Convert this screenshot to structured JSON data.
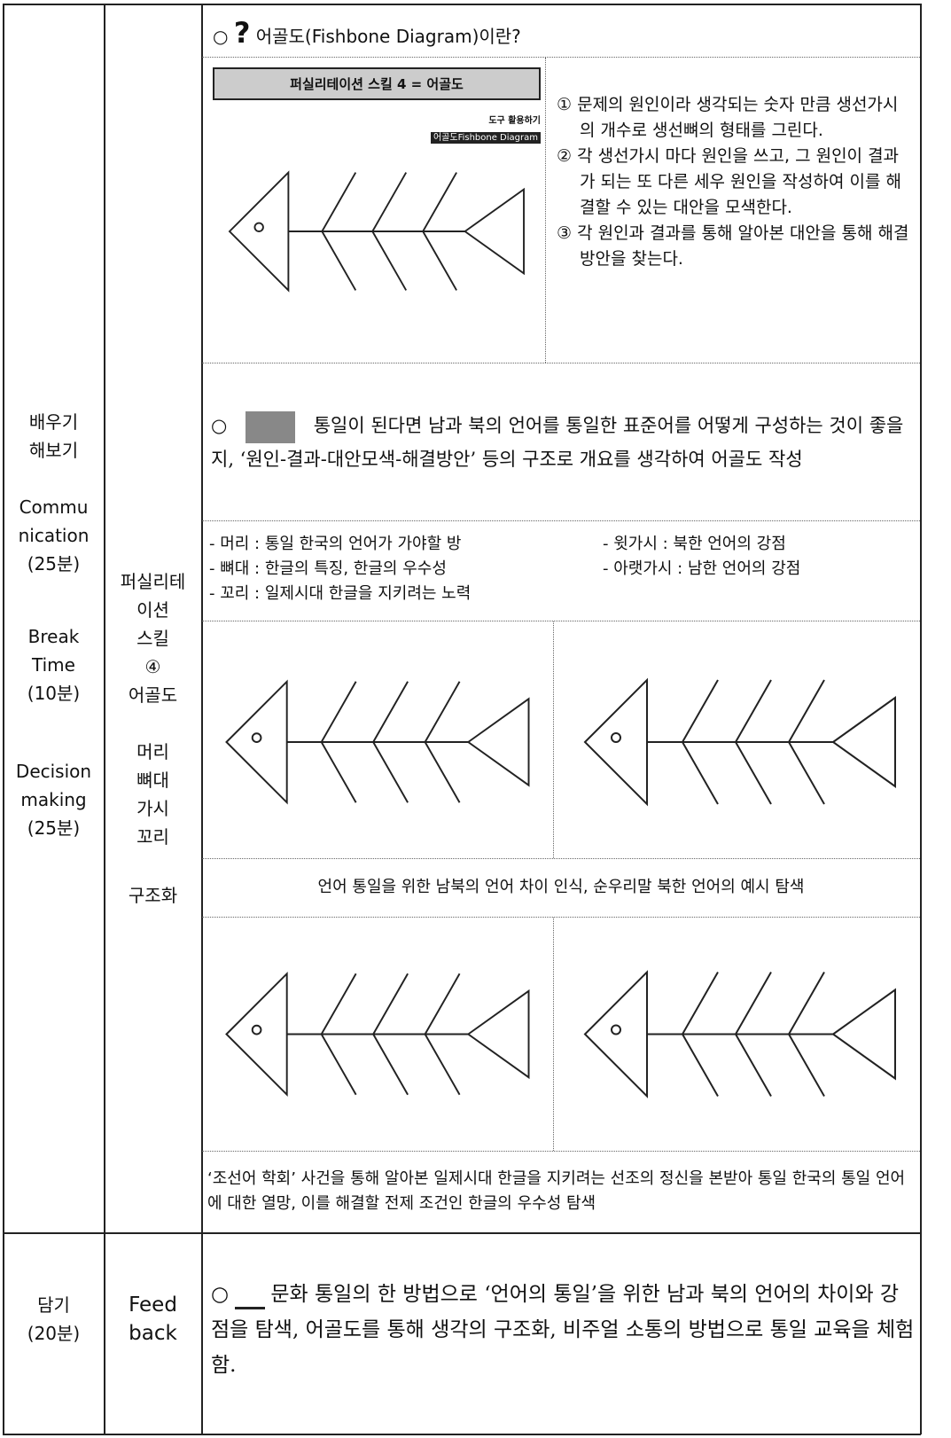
{
  "stages": [
    [
      "배우기",
      "해보기"
    ],
    [
      "Commu",
      "nication",
      "(25분)"
    ],
    [
      "Break",
      "Time",
      "(10분)"
    ],
    [
      "Decision",
      "making",
      "(25분)"
    ]
  ],
  "methods": [
    [
      "퍼실리테",
      "이션",
      "스킬",
      "④",
      "어골도"
    ],
    [
      "머리",
      "뼈대",
      "가시",
      "꼬리"
    ],
    [
      "구조화"
    ]
  ],
  "content": {
    "heading": "어골도(Fishbone Diagram)이란?",
    "inset": {
      "title": "퍼실리테이션 스킬 4 = 어골도",
      "tag": "도구 활용하기",
      "subtitle": "어골도Fishbone Diagram"
    },
    "steps": [
      "① 문제의 원인이라 생각되는 숫자 만큼 생선가시의 개수로 생선뼈의 형태를 그린다.",
      "② 각 생선가시 마다 원인을 쓰고, 그 원인이 결과가 되는 또 다른 세우 원인을 작성하여 이를 해결할 수 있는 대안을 모색한다.",
      "③ 각 원인과 결과를 통해 알아본 대안을 통해 해결방안을 찾는다."
    ],
    "intro": "통일이 된다면 남과 북의 언어를 통일한 표준어를 어떻게 구성하는 것이 좋을지, ‘원인-결과-대안모색-해결방안’ 등의 구조로 개요를 생각하여 어골도 작성",
    "structure": [
      "- 머리 : 통일 한국의 언어가 가야할 방",
      "- 윗가시 : 북한 언어의 강점",
      "- 뼈대 : 한글의 특징, 한글의 우수성",
      "- 아랫가시 : 남한 언어의 강점",
      "- 꼬리 : 일제시대 한글을 지키려는 노력"
    ],
    "caption": "언어 통일을 위한 남북의 언어 차이 인식, 순우리말 북한 언어의 예시 탐색",
    "summary": "‘조선어 학회’ 사건을 통해 알아본 일제시대 한글을 지키려는 선조의 정신을 본받아 통일 한국의 통일 언어에 대한 열망, 이를 해결할 전제 조건인 한글의 우수성 탐색"
  },
  "feedback": {
    "stage": [
      "담기",
      "(20분)"
    ],
    "method": [
      "Feed",
      "back"
    ],
    "text": "문화 통일의 한 방법으로 ‘언어의 통일’을 위한 남과 북의 언어의 차이와 강점을 탐색, 어골도를 통해 생각의 구조화, 비주얼 소통의 방법으로 통일 교육을 체험함."
  }
}
